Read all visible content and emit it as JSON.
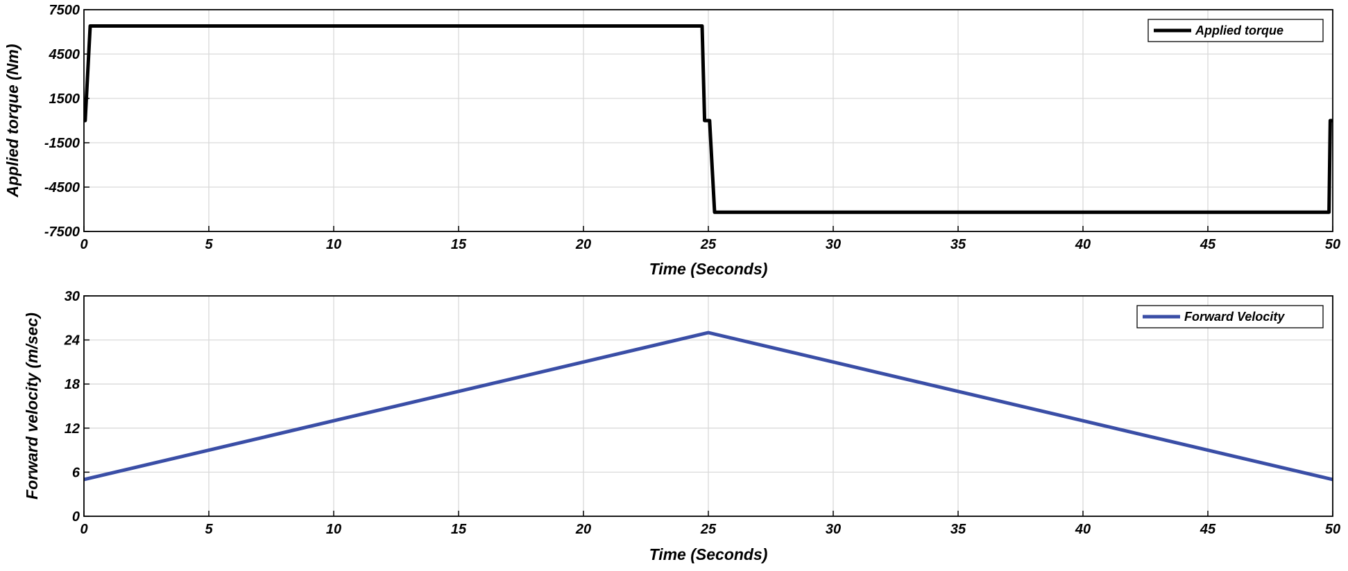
{
  "chart_data": [
    {
      "type": "line",
      "xlabel": "Time (Seconds)",
      "ylabel": "Applied torque (Nm)",
      "xlim": [
        0,
        50
      ],
      "ylim": [
        -7500,
        7500
      ],
      "xticks": [
        0,
        5,
        10,
        15,
        20,
        25,
        30,
        35,
        40,
        45,
        50
      ],
      "yticks": [
        7500,
        4500,
        1500,
        -1500,
        -4500,
        -7500
      ],
      "grid": true,
      "legend_position": "top-right",
      "series": [
        {
          "name": "Applied torque",
          "color": "#000000",
          "x": [
            0,
            0.05,
            0.25,
            24.75,
            24.85,
            24.95,
            25.05,
            25.25,
            49.85,
            49.9,
            50
          ],
          "y": [
            0,
            0,
            6400,
            6400,
            0,
            0,
            0,
            -6200,
            -6200,
            0,
            0
          ]
        }
      ]
    },
    {
      "type": "line",
      "xlabel": "Time (Seconds)",
      "ylabel": "Forward velocity (m/sec)",
      "xlim": [
        0,
        50
      ],
      "ylim": [
        0,
        30
      ],
      "xticks": [
        0,
        5,
        10,
        15,
        20,
        25,
        30,
        35,
        40,
        45,
        50
      ],
      "yticks": [
        30,
        24,
        18,
        12,
        6,
        0
      ],
      "grid": true,
      "legend_position": "top-right",
      "series": [
        {
          "name": "Forward Velocity",
          "color": "#3a4ea6",
          "x": [
            0,
            25,
            50
          ],
          "y": [
            5,
            25,
            5
          ]
        }
      ]
    }
  ]
}
